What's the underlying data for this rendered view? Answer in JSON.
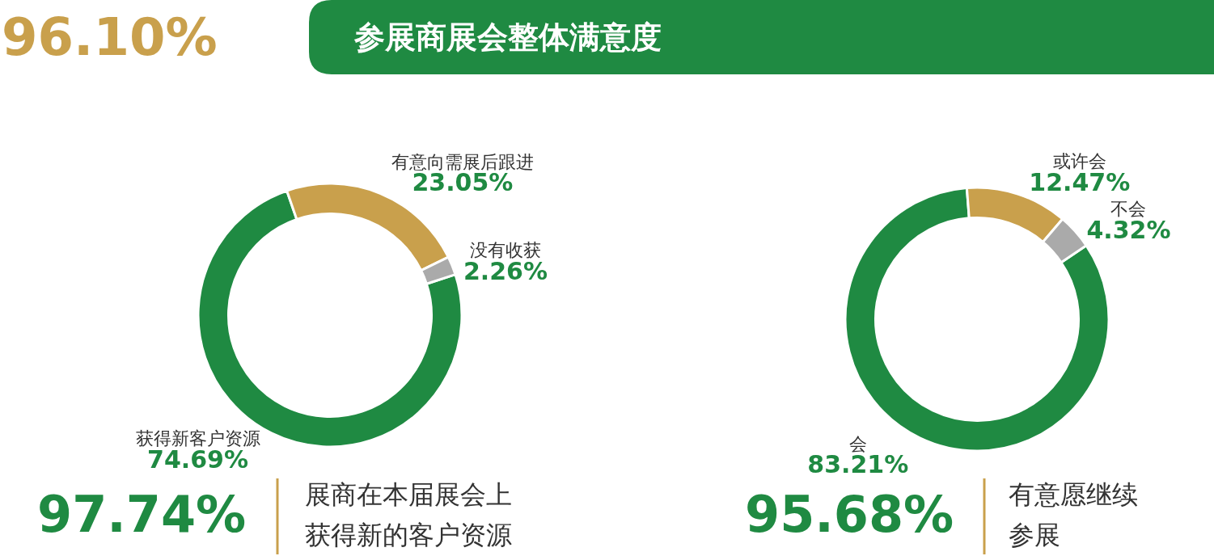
{
  "chart_data": [
    {
      "type": "other",
      "title": "参展商展会整体满意度",
      "annotations": [
        "96.10%"
      ]
    },
    {
      "type": "donut",
      "categories": [
        "获得新客户资源",
        "有意向需展后跟进",
        "没有收获"
      ],
      "values": [
        74.69,
        23.05,
        2.26
      ],
      "colors": [
        "#1f8a42",
        "#c9a04c",
        "#aaaaaa"
      ],
      "value_labels": [
        "74.69%",
        "23.05%",
        "2.26%"
      ],
      "annotations": [
        "97.74%",
        "展商在本届展会上",
        "获得新的客户资源"
      ]
    },
    {
      "type": "donut",
      "categories": [
        "会",
        "或许会",
        "不会"
      ],
      "values": [
        83.21,
        12.47,
        4.32
      ],
      "colors": [
        "#1f8a42",
        "#c9a04c",
        "#aaaaaa"
      ],
      "value_labels": [
        "83.21%",
        "12.47%",
        "4.32%"
      ],
      "annotations": [
        "95.68%",
        "有意愿继续",
        "参展"
      ]
    }
  ]
}
